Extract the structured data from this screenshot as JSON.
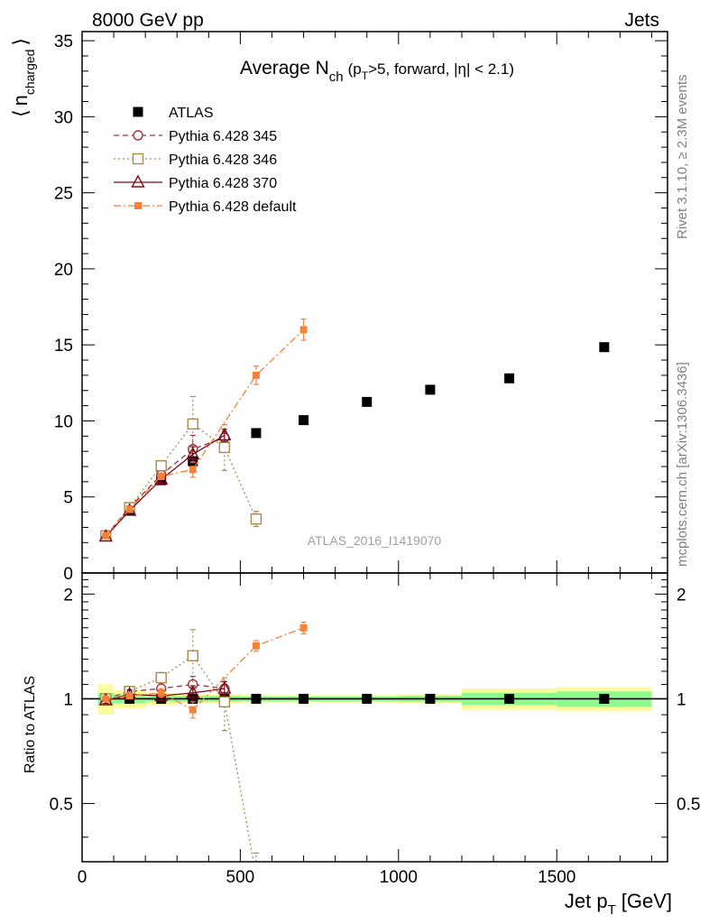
{
  "header": {
    "left": "8000 GeV pp",
    "right": "Jets"
  },
  "side_labels": {
    "rivet": "Rivet 3.1.10, ≥ 2.3M events",
    "mcplots": "mcplots.cern.ch [arXiv:1306.3436]"
  },
  "analysis_id": "ATLAS_2016_I1419070",
  "colors": {
    "atlas": "#000000",
    "p345": "#a0303a",
    "p346": "#a58a48",
    "p370": "#7a0a1e",
    "pdefault": "#f5813a",
    "band_inner": "#8ffb8f",
    "band_outer": "#fbfb9b"
  },
  "chart_data": {
    "type": "scatter",
    "title": "Average N_ch (p_T>5, forward, |η| < 2.1)",
    "title_parts": {
      "main": "Average N",
      "sub": "ch",
      "rest_a": "(p",
      "rest_sub": "T",
      "rest_b": ">5, forward, |η| < 2.1)"
    },
    "xlabel": "Jet p_T [GeV]",
    "xlabel_parts": {
      "main": "Jet p",
      "sub": "T",
      "rest": "[GeV]"
    },
    "ylabel": "⟨ n_charged ⟩",
    "ylabel_parts": {
      "open": "⟨",
      "main": "n",
      "sub": "charged",
      "close": "⟩"
    },
    "ratio_ylabel": "Ratio to ATLAS",
    "xlim": [
      0,
      1850
    ],
    "ylim": [
      0,
      35.6
    ],
    "ratio_ylim": [
      0.34,
      2.3
    ],
    "x_ticks": [
      0,
      500,
      1000,
      1500
    ],
    "y_ticks": [
      0,
      5,
      10,
      15,
      20,
      25,
      30,
      35
    ],
    "ratio_ticks": [
      0.5,
      1,
      2
    ],
    "legend_position": "top-left",
    "legend": [
      {
        "key": "atlas",
        "label": "ATLAS",
        "marker": "square-filled",
        "line": "none"
      },
      {
        "key": "p345",
        "label": "Pythia 6.428 345",
        "marker": "circle-open",
        "line": "dashed"
      },
      {
        "key": "p346",
        "label": "Pythia 6.428 346",
        "marker": "square-open",
        "line": "dotted"
      },
      {
        "key": "p370",
        "label": "Pythia 6.428 370",
        "marker": "triangle-open",
        "line": "solid"
      },
      {
        "key": "pdefault",
        "label": "Pythia 6.428 default",
        "marker": "square-filled-small",
        "line": "dashdot"
      }
    ],
    "atlas": {
      "bins": [
        [
          50,
          100
        ],
        [
          100,
          200
        ],
        [
          200,
          300
        ],
        [
          300,
          400
        ],
        [
          400,
          500
        ],
        [
          500,
          600
        ],
        [
          600,
          800
        ],
        [
          800,
          1000
        ],
        [
          1000,
          1200
        ],
        [
          1200,
          1500
        ],
        [
          1500,
          1800
        ]
      ],
      "x": [
        75,
        150,
        250,
        350,
        450,
        550,
        700,
        900,
        1100,
        1350,
        1650
      ],
      "y": [
        2.45,
        4.15,
        6.1,
        7.35,
        8.3,
        9.2,
        10.05,
        11.25,
        12.05,
        12.8,
        14.85
      ],
      "band_inner": [
        0.04,
        0.03,
        0.02,
        0.02,
        0.02,
        0.015,
        0.015,
        0.015,
        0.02,
        0.04,
        0.05
      ],
      "band_outer": [
        0.1,
        0.06,
        0.04,
        0.03,
        0.03,
        0.025,
        0.025,
        0.025,
        0.03,
        0.07,
        0.08
      ]
    },
    "series": [
      {
        "key": "p345",
        "name": "Pythia 6.428 345",
        "x": [
          75,
          150,
          250,
          350,
          450
        ],
        "y": [
          2.45,
          4.3,
          6.45,
          8.15,
          8.9
        ],
        "err": [
          0.08,
          0.1,
          0.3,
          0.9,
          0.4
        ],
        "ratio": [
          1.0,
          1.05,
          1.07,
          1.1,
          1.07
        ],
        "ratio_err": [
          0.03,
          0.03,
          0.04,
          0.06,
          0.05
        ]
      },
      {
        "key": "p346",
        "name": "Pythia 6.428 346",
        "x": [
          75,
          150,
          250,
          350,
          450,
          550
        ],
        "y": [
          2.45,
          4.3,
          7.05,
          9.8,
          8.25,
          3.55
        ],
        "err": [
          0.08,
          0.12,
          0.3,
          1.8,
          1.5,
          0.5
        ],
        "ratio": [
          1.0,
          1.05,
          1.15,
          1.33,
          0.98,
          0.31
        ],
        "ratio_err": [
          0.03,
          0.03,
          0.04,
          0.25,
          0.17,
          0.05
        ]
      },
      {
        "key": "p370",
        "name": "Pythia 6.428 370",
        "x": [
          75,
          150,
          250,
          350,
          450
        ],
        "y": [
          2.4,
          4.1,
          6.15,
          7.8,
          9.05
        ],
        "err": [
          0.05,
          0.1,
          0.2,
          0.5,
          0.4
        ],
        "ratio": [
          0.99,
          1.03,
          1.02,
          1.04,
          1.07
        ],
        "ratio_err": [
          0.02,
          0.03,
          0.03,
          0.05,
          0.05
        ]
      },
      {
        "key": "pdefault",
        "name": "Pythia 6.428 default",
        "x": [
          75,
          150,
          250,
          350,
          550,
          700
        ],
        "y": [
          2.45,
          4.2,
          6.35,
          6.8,
          13.0,
          16.0
        ],
        "err": [
          0.05,
          0.1,
          0.2,
          0.5,
          0.6,
          0.7
        ],
        "ratio": [
          1.0,
          1.02,
          1.04,
          0.93,
          1.42,
          1.6
        ],
        "ratio_err": [
          0.02,
          0.02,
          0.03,
          0.05,
          0.05,
          0.06
        ]
      }
    ]
  }
}
